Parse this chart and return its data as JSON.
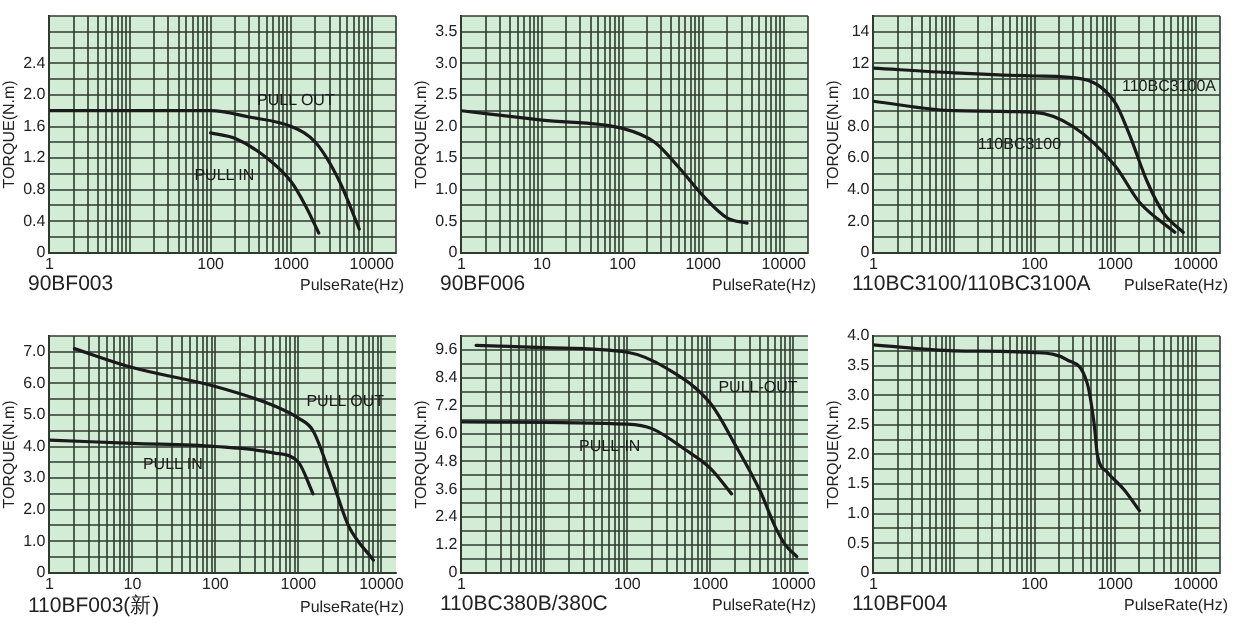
{
  "chart_data": [
    {
      "type": "line",
      "title": "90BF003",
      "xlabel": "PulseRate(Hz)",
      "ylabel": "TORQUE(N.m)",
      "log": "x",
      "grid": true,
      "legend": false,
      "marker": "none",
      "line_style": "solid",
      "xlim": [
        1,
        20000
      ],
      "xticks": [
        1,
        {
          "value": 2,
          "label": null
        },
        {
          "value": 3,
          "label": null
        },
        {
          "value": 4,
          "label": null
        },
        {
          "value": 5,
          "label": null
        },
        {
          "value": 6,
          "label": null
        },
        {
          "value": 7,
          "label": null
        },
        {
          "value": 8,
          "label": null
        },
        {
          "value": 9,
          "label": null
        },
        {
          "value": 10,
          "label": null
        },
        {
          "value": 20,
          "label": null
        },
        {
          "value": 30,
          "label": null
        },
        {
          "value": 40,
          "label": null
        },
        {
          "value": 50,
          "label": null
        },
        {
          "value": 60,
          "label": null
        },
        {
          "value": 70,
          "label": null
        },
        {
          "value": 80,
          "label": null
        },
        {
          "value": 90,
          "label": null
        },
        100,
        {
          "value": 200,
          "label": null
        },
        {
          "value": 300,
          "label": null
        },
        {
          "value": 400,
          "label": null
        },
        {
          "value": 500,
          "label": null
        },
        {
          "value": 600,
          "label": null
        },
        {
          "value": 700,
          "label": null
        },
        {
          "value": 800,
          "label": null
        },
        {
          "value": 900,
          "label": null
        },
        1000,
        {
          "value": 2000,
          "label": null
        },
        {
          "value": 3000,
          "label": null
        },
        {
          "value": 4000,
          "label": null
        },
        {
          "value": 5000,
          "label": null
        },
        {
          "value": 6000,
          "label": null
        },
        {
          "value": 7000,
          "label": null
        },
        {
          "value": 8000,
          "label": null
        },
        {
          "value": 9000,
          "label": null
        },
        10000,
        {
          "value": 20000,
          "label": null
        }
      ],
      "ylim": [
        0,
        3.0
      ],
      "yticks": [
        0,
        {
          "value": 0.2,
          "label": null
        },
        0.4,
        {
          "value": 0.6,
          "label": null
        },
        0.8,
        {
          "value": 1.0,
          "label": null
        },
        1.2,
        {
          "value": 1.4,
          "label": null
        },
        1.6,
        {
          "value": 1.8,
          "label": null
        },
        {
          "value": 2.0,
          "label": "2.0"
        },
        {
          "value": 2.2,
          "label": null
        },
        2.4,
        {
          "value": 2.6,
          "label": null
        },
        {
          "value": 2.8,
          "label": null
        },
        {
          "value": 3.0,
          "label": null
        }
      ],
      "series": [
        {
          "name": "PULL OUT",
          "color": "#1a1a1a",
          "x": [
            1,
            10,
            100,
            300,
            1000,
            2000,
            4000,
            7000
          ],
          "values": [
            1.8,
            1.8,
            1.8,
            1.72,
            1.6,
            1.4,
            0.9,
            0.3
          ]
        },
        {
          "name": "PULL IN",
          "color": "#1a1a1a",
          "x": [
            100,
            200,
            500,
            1000,
            1500,
            2200
          ],
          "values": [
            1.52,
            1.45,
            1.2,
            0.9,
            0.6,
            0.25
          ]
        }
      ]
    },
    {
      "type": "line",
      "title": "90BF006",
      "xlabel": "PulseRate(Hz)",
      "ylabel": "TORQUE(N.m)",
      "log": "x",
      "grid": true,
      "legend": false,
      "marker": "none",
      "line_style": "solid",
      "xlim": [
        1,
        20000
      ],
      "xticks": [
        1,
        {
          "value": 2,
          "label": null
        },
        {
          "value": 3,
          "label": null
        },
        {
          "value": 4,
          "label": null
        },
        {
          "value": 5,
          "label": null
        },
        {
          "value": 6,
          "label": null
        },
        {
          "value": 7,
          "label": null
        },
        {
          "value": 8,
          "label": null
        },
        {
          "value": 9,
          "label": null
        },
        10,
        {
          "value": 20,
          "label": null
        },
        {
          "value": 30,
          "label": null
        },
        {
          "value": 40,
          "label": null
        },
        {
          "value": 50,
          "label": null
        },
        {
          "value": 60,
          "label": null
        },
        {
          "value": 70,
          "label": null
        },
        {
          "value": 80,
          "label": null
        },
        {
          "value": 90,
          "label": null
        },
        100,
        {
          "value": 200,
          "label": null
        },
        {
          "value": 300,
          "label": null
        },
        {
          "value": 400,
          "label": null
        },
        {
          "value": 500,
          "label": null
        },
        {
          "value": 600,
          "label": null
        },
        {
          "value": 700,
          "label": null
        },
        {
          "value": 800,
          "label": null
        },
        {
          "value": 900,
          "label": null
        },
        1000,
        {
          "value": 2000,
          "label": null
        },
        {
          "value": 3000,
          "label": null
        },
        {
          "value": 4000,
          "label": null
        },
        {
          "value": 5000,
          "label": null
        },
        {
          "value": 6000,
          "label": null
        },
        {
          "value": 7000,
          "label": null
        },
        {
          "value": 8000,
          "label": null
        },
        {
          "value": 9000,
          "label": null
        },
        10000,
        {
          "value": 20000,
          "label": null
        }
      ],
      "ylim": [
        0,
        3.75
      ],
      "yticks": [
        0,
        {
          "value": 0.25,
          "label": null
        },
        0.5,
        {
          "value": 0.75,
          "label": null
        },
        {
          "value": 1.0,
          "label": "1.0"
        },
        {
          "value": 1.25,
          "label": null
        },
        1.5,
        {
          "value": 1.75,
          "label": null
        },
        {
          "value": 2.0,
          "label": "2.0"
        },
        {
          "value": 2.25,
          "label": null
        },
        2.5,
        {
          "value": 2.75,
          "label": null
        },
        {
          "value": 3.0,
          "label": "3.0"
        },
        {
          "value": 3.25,
          "label": null
        },
        3.5,
        {
          "value": 3.75,
          "label": null
        }
      ],
      "series": [
        {
          "color": "#1a1a1a",
          "x": [
            1,
            10,
            100,
            250,
            500,
            1000,
            2000,
            3500
          ],
          "values": [
            2.25,
            2.1,
            1.97,
            1.75,
            1.35,
            0.9,
            0.55,
            0.47
          ]
        }
      ]
    },
    {
      "type": "line",
      "title": "110BC3100/110BC3100A",
      "xlabel": "PulseRate(Hz)",
      "ylabel": "TORQUE(N.m)",
      "log": "x",
      "grid": true,
      "legend": false,
      "marker": "none",
      "line_style": "solid",
      "xlim": [
        1,
        20000
      ],
      "xticks": [
        1,
        {
          "value": 2,
          "label": null
        },
        {
          "value": 3,
          "label": null
        },
        {
          "value": 4,
          "label": null
        },
        {
          "value": 5,
          "label": null
        },
        {
          "value": 6,
          "label": null
        },
        {
          "value": 7,
          "label": null
        },
        {
          "value": 8,
          "label": null
        },
        {
          "value": 9,
          "label": null
        },
        {
          "value": 10,
          "label": null
        },
        {
          "value": 20,
          "label": null
        },
        {
          "value": 30,
          "label": null
        },
        {
          "value": 40,
          "label": null
        },
        {
          "value": 50,
          "label": null
        },
        {
          "value": 60,
          "label": null
        },
        {
          "value": 70,
          "label": null
        },
        {
          "value": 80,
          "label": null
        },
        {
          "value": 90,
          "label": null
        },
        100,
        {
          "value": 200,
          "label": null
        },
        {
          "value": 300,
          "label": null
        },
        {
          "value": 400,
          "label": null
        },
        {
          "value": 500,
          "label": null
        },
        {
          "value": 600,
          "label": null
        },
        {
          "value": 700,
          "label": null
        },
        {
          "value": 800,
          "label": null
        },
        {
          "value": 900,
          "label": null
        },
        1000,
        {
          "value": 2000,
          "label": null
        },
        {
          "value": 3000,
          "label": null
        },
        {
          "value": 4000,
          "label": null
        },
        {
          "value": 5000,
          "label": null
        },
        {
          "value": 6000,
          "label": null
        },
        {
          "value": 7000,
          "label": null
        },
        {
          "value": 8000,
          "label": null
        },
        {
          "value": 9000,
          "label": null
        },
        10000,
        {
          "value": 20000,
          "label": null
        }
      ],
      "ylim": [
        0,
        15
      ],
      "yticks": [
        0,
        {
          "value": 1,
          "label": null
        },
        {
          "value": 2,
          "label": "2.0"
        },
        {
          "value": 3,
          "label": null
        },
        {
          "value": 4,
          "label": "4.0"
        },
        {
          "value": 5,
          "label": null
        },
        {
          "value": 6,
          "label": "6.0"
        },
        {
          "value": 7,
          "label": null
        },
        {
          "value": 8,
          "label": "8.0"
        },
        {
          "value": 9,
          "label": null
        },
        10,
        {
          "value": 11,
          "label": null
        },
        12,
        {
          "value": 13,
          "label": null
        },
        14,
        {
          "value": 15,
          "label": null
        }
      ],
      "series": [
        {
          "name": "110BC3100A",
          "color": "#1a1a1a",
          "x": [
            1,
            10,
            100,
            400,
            1000,
            1500,
            2500,
            4000,
            7000
          ],
          "values": [
            11.7,
            11.4,
            11.2,
            11.0,
            9.5,
            7.5,
            4.5,
            2.5,
            1.3
          ]
        },
        {
          "name": "110BC3100",
          "color": "#1a1a1a",
          "x": [
            1,
            10,
            100,
            300,
            1000,
            2000,
            5500
          ],
          "values": [
            9.6,
            9.0,
            8.9,
            8.0,
            5.5,
            3.2,
            1.3
          ]
        }
      ]
    },
    {
      "type": "line",
      "title": "110BF003(新)",
      "xlabel": "PulseRate(Hz)",
      "ylabel": "TORQUE(N.m)",
      "log": "x",
      "grid": true,
      "legend": false,
      "marker": "none",
      "line_style": "solid",
      "xlim": [
        1,
        15000
      ],
      "xticks": [
        1,
        {
          "value": 2,
          "label": null
        },
        {
          "value": 3,
          "label": null
        },
        {
          "value": 4,
          "label": null
        },
        {
          "value": 5,
          "label": null
        },
        {
          "value": 6,
          "label": null
        },
        {
          "value": 7,
          "label": null
        },
        {
          "value": 8,
          "label": null
        },
        {
          "value": 9,
          "label": null
        },
        10,
        {
          "value": 20,
          "label": null
        },
        {
          "value": 30,
          "label": null
        },
        {
          "value": 40,
          "label": null
        },
        {
          "value": 50,
          "label": null
        },
        {
          "value": 60,
          "label": null
        },
        {
          "value": 70,
          "label": null
        },
        {
          "value": 80,
          "label": null
        },
        {
          "value": 90,
          "label": null
        },
        100,
        {
          "value": 200,
          "label": null
        },
        {
          "value": 300,
          "label": null
        },
        {
          "value": 400,
          "label": null
        },
        {
          "value": 500,
          "label": null
        },
        {
          "value": 600,
          "label": null
        },
        {
          "value": 700,
          "label": null
        },
        {
          "value": 800,
          "label": null
        },
        {
          "value": 900,
          "label": null
        },
        1000,
        {
          "value": 2000,
          "label": null
        },
        {
          "value": 3000,
          "label": null
        },
        {
          "value": 4000,
          "label": null
        },
        {
          "value": 5000,
          "label": null
        },
        {
          "value": 6000,
          "label": null
        },
        {
          "value": 7000,
          "label": null
        },
        {
          "value": 8000,
          "label": null
        },
        {
          "value": 9000,
          "label": null
        },
        10000
      ],
      "ylim": [
        0,
        7.5
      ],
      "yticks": [
        0,
        {
          "value": 0.5,
          "label": null
        },
        {
          "value": 1,
          "label": "1.0"
        },
        {
          "value": 1.5,
          "label": null
        },
        {
          "value": 2,
          "label": "2.0"
        },
        {
          "value": 2.5,
          "label": null
        },
        {
          "value": 3,
          "label": "3.0"
        },
        {
          "value": 3.5,
          "label": null
        },
        {
          "value": 4,
          "label": "4.0"
        },
        {
          "value": 4.5,
          "label": null
        },
        {
          "value": 5,
          "label": "5.0"
        },
        {
          "value": 5.5,
          "label": null
        },
        {
          "value": 6,
          "label": "6.0"
        },
        {
          "value": 6.5,
          "label": null
        },
        {
          "value": 7,
          "label": "7.0"
        },
        {
          "value": 7.5,
          "label": null
        }
      ],
      "series": [
        {
          "name": "PULL OUT",
          "color": "#1a1a1a",
          "x": [
            2,
            10,
            100,
            500,
            1000,
            1500,
            2500,
            4000,
            8000
          ],
          "values": [
            7.1,
            6.5,
            5.9,
            5.3,
            4.9,
            4.5,
            3.0,
            1.5,
            0.4
          ]
        },
        {
          "name": "PULL IN",
          "color": "#1a1a1a",
          "x": [
            1,
            10,
            100,
            500,
            1000,
            1500
          ],
          "values": [
            4.2,
            4.1,
            4.0,
            3.8,
            3.5,
            2.5
          ]
        }
      ]
    },
    {
      "type": "line",
      "title": "110BC380B/380C",
      "xlabel": "PulseRate(Hz)",
      "ylabel": "TORQUE(N.m)",
      "log": "x",
      "grid": true,
      "legend": false,
      "marker": "none",
      "line_style": "solid",
      "xlim": [
        1,
        15000
      ],
      "xticks": [
        1,
        {
          "value": 2,
          "label": null
        },
        {
          "value": 3,
          "label": null
        },
        {
          "value": 4,
          "label": null
        },
        {
          "value": 5,
          "label": null
        },
        {
          "value": 6,
          "label": null
        },
        {
          "value": 7,
          "label": null
        },
        {
          "value": 8,
          "label": null
        },
        {
          "value": 9,
          "label": null
        },
        {
          "value": 10,
          "label": null
        },
        {
          "value": 20,
          "label": null
        },
        {
          "value": 30,
          "label": null
        },
        {
          "value": 40,
          "label": null
        },
        {
          "value": 50,
          "label": null
        },
        {
          "value": 60,
          "label": null
        },
        {
          "value": 70,
          "label": null
        },
        {
          "value": 80,
          "label": null
        },
        {
          "value": 90,
          "label": null
        },
        100,
        {
          "value": 200,
          "label": null
        },
        {
          "value": 300,
          "label": null
        },
        {
          "value": 400,
          "label": null
        },
        {
          "value": 500,
          "label": null
        },
        {
          "value": 600,
          "label": null
        },
        {
          "value": 700,
          "label": null
        },
        {
          "value": 800,
          "label": null
        },
        {
          "value": 900,
          "label": null
        },
        1000,
        {
          "value": 2000,
          "label": null
        },
        {
          "value": 3000,
          "label": null
        },
        {
          "value": 4000,
          "label": null
        },
        {
          "value": 5000,
          "label": null
        },
        {
          "value": 6000,
          "label": null
        },
        {
          "value": 7000,
          "label": null
        },
        {
          "value": 8000,
          "label": null
        },
        {
          "value": 9000,
          "label": null
        },
        10000
      ],
      "ylim": [
        0,
        10.2
      ],
      "yticks": [
        0,
        {
          "value": 0.6,
          "label": null
        },
        1.2,
        {
          "value": 1.8,
          "label": null
        },
        2.4,
        {
          "value": 3.0,
          "label": null
        },
        3.6,
        {
          "value": 4.2,
          "label": null
        },
        4.8,
        {
          "value": 5.4,
          "label": null
        },
        {
          "value": 6.0,
          "label": "6.0"
        },
        {
          "value": 6.6,
          "label": null
        },
        7.2,
        {
          "value": 7.8,
          "label": null
        },
        8.4,
        {
          "value": 9.0,
          "label": null
        },
        9.6,
        {
          "value": 10.2,
          "label": null
        }
      ],
      "series": [
        {
          "name": "PULL-OUT",
          "color": "#1a1a1a",
          "x": [
            1.5,
            10,
            100,
            300,
            1000,
            2000,
            4000,
            6000,
            8000,
            11000
          ],
          "values": [
            9.8,
            9.7,
            9.5,
            8.8,
            7.3,
            5.5,
            3.5,
            2.0,
            1.2,
            0.7
          ]
        },
        {
          "name": "PULL-IN",
          "color": "#1a1a1a",
          "x": [
            1,
            100,
            200,
            500,
            1000,
            1800
          ],
          "values": [
            6.5,
            6.4,
            6.2,
            5.3,
            4.5,
            3.4
          ]
        }
      ]
    },
    {
      "type": "line",
      "title": "110BF004",
      "xlabel": "PulseRate(Hz)",
      "ylabel": "TORQUE(N.m)",
      "log": "x",
      "grid": true,
      "legend": false,
      "marker": "none",
      "line_style": "solid",
      "xlim": [
        1,
        20000
      ],
      "xticks": [
        1,
        {
          "value": 2,
          "label": null
        },
        {
          "value": 3,
          "label": null
        },
        {
          "value": 4,
          "label": null
        },
        {
          "value": 5,
          "label": null
        },
        {
          "value": 6,
          "label": null
        },
        {
          "value": 7,
          "label": null
        },
        {
          "value": 8,
          "label": null
        },
        {
          "value": 9,
          "label": null
        },
        {
          "value": 10,
          "label": null
        },
        {
          "value": 20,
          "label": null
        },
        {
          "value": 30,
          "label": null
        },
        {
          "value": 40,
          "label": null
        },
        {
          "value": 50,
          "label": null
        },
        {
          "value": 60,
          "label": null
        },
        {
          "value": 70,
          "label": null
        },
        {
          "value": 80,
          "label": null
        },
        {
          "value": 90,
          "label": null
        },
        100,
        {
          "value": 200,
          "label": null
        },
        {
          "value": 300,
          "label": null
        },
        {
          "value": 400,
          "label": null
        },
        {
          "value": 500,
          "label": null
        },
        {
          "value": 600,
          "label": null
        },
        {
          "value": 700,
          "label": null
        },
        {
          "value": 800,
          "label": null
        },
        {
          "value": 900,
          "label": null
        },
        1000,
        {
          "value": 2000,
          "label": null
        },
        {
          "value": 3000,
          "label": null
        },
        {
          "value": 4000,
          "label": null
        },
        {
          "value": 5000,
          "label": null
        },
        {
          "value": 6000,
          "label": null
        },
        {
          "value": 7000,
          "label": null
        },
        {
          "value": 8000,
          "label": null
        },
        {
          "value": 9000,
          "label": null
        },
        10000,
        {
          "value": 20000,
          "label": null
        }
      ],
      "ylim": [
        0,
        4.0
      ],
      "yticks": [
        0,
        {
          "value": 0.25,
          "label": null
        },
        0.5,
        {
          "value": 0.75,
          "label": null
        },
        {
          "value": 1.0,
          "label": "1.0"
        },
        {
          "value": 1.25,
          "label": null
        },
        1.5,
        {
          "value": 1.75,
          "label": null
        },
        {
          "value": 2.0,
          "label": "2.0"
        },
        {
          "value": 2.25,
          "label": null
        },
        2.5,
        {
          "value": 2.75,
          "label": null
        },
        {
          "value": 3.0,
          "label": "3.0"
        },
        {
          "value": 3.25,
          "label": null
        },
        3.5,
        {
          "value": 3.75,
          "label": null
        },
        {
          "value": 4.0,
          "label": "4.0"
        }
      ],
      "series": [
        {
          "color": "#1a1a1a",
          "x": [
            1,
            10,
            100,
            250,
            450,
            550,
            600,
            800,
            1300,
            2000
          ],
          "values": [
            3.85,
            3.75,
            3.72,
            3.6,
            3.2,
            2.5,
            2.0,
            1.7,
            1.4,
            1.05
          ]
        }
      ]
    }
  ]
}
